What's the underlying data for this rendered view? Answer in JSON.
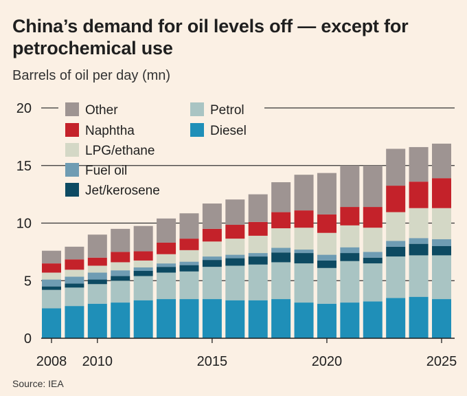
{
  "title": "China’s demand for oil levels off — except for petrochemical use",
  "subtitle": "Barrels of oil per day (mn)",
  "source": "Source: IEA",
  "colors": {
    "background": "#fbf0e4",
    "Diesel": "#1f8fb8",
    "Petrol": "#a9c4c3",
    "Jet/kerosene": "#0d4a62",
    "Fuel oil": "#6f9cb3",
    "LPG/ethane": "#d4d8c6",
    "Naphtha": "#c4222a",
    "Other": "#9e9492"
  },
  "chart_data": {
    "type": "bar",
    "stacked": true,
    "title": "China’s demand for oil levels off — except for petrochemical use",
    "ylabel": "Barrels of oil per day (mn)",
    "ylim": [
      0,
      20
    ],
    "yticks": [
      0,
      5,
      10,
      15,
      20
    ],
    "xticks": [
      "2008",
      "2010",
      "2015",
      "2020",
      "2025"
    ],
    "categories": [
      "2008",
      "2009",
      "2010",
      "2011",
      "2012",
      "2013",
      "2014",
      "2015",
      "2016",
      "2017",
      "2018",
      "2019",
      "2020",
      "2021",
      "2022",
      "2023",
      "2024",
      "2025"
    ],
    "legend_placement": "top-left",
    "legend": [
      "Other",
      "Naphtha",
      "LPG/ethane",
      "Fuel oil",
      "Jet/kerosene",
      "Petrol",
      "Diesel"
    ],
    "series": [
      {
        "name": "Diesel",
        "values": [
          2.6,
          2.8,
          3.0,
          3.1,
          3.3,
          3.4,
          3.4,
          3.4,
          3.3,
          3.3,
          3.4,
          3.1,
          3.0,
          3.1,
          3.2,
          3.5,
          3.6,
          3.4
        ]
      },
      {
        "name": "Petrol",
        "values": [
          1.6,
          1.6,
          1.7,
          1.9,
          2.1,
          2.3,
          2.4,
          2.8,
          3.0,
          3.1,
          3.2,
          3.4,
          3.1,
          3.6,
          3.3,
          3.6,
          3.6,
          3.8
        ]
      },
      {
        "name": "Jet/kerosene",
        "values": [
          0.3,
          0.35,
          0.4,
          0.4,
          0.45,
          0.5,
          0.55,
          0.6,
          0.65,
          0.7,
          0.85,
          0.9,
          0.65,
          0.7,
          0.5,
          0.85,
          1.0,
          0.8
        ]
      },
      {
        "name": "Fuel oil",
        "values": [
          0.6,
          0.6,
          0.6,
          0.5,
          0.3,
          0.3,
          0.3,
          0.3,
          0.3,
          0.3,
          0.4,
          0.3,
          0.5,
          0.5,
          0.5,
          0.5,
          0.5,
          0.6
        ]
      },
      {
        "name": "LPG/ethane",
        "values": [
          0.6,
          0.6,
          0.6,
          0.7,
          0.6,
          0.8,
          1.0,
          1.3,
          1.4,
          1.5,
          1.7,
          1.9,
          1.9,
          1.9,
          2.1,
          2.5,
          2.6,
          2.7
        ]
      },
      {
        "name": "Naphtha",
        "values": [
          0.8,
          0.9,
          0.7,
          0.9,
          0.8,
          1.0,
          1.0,
          1.1,
          1.2,
          1.2,
          1.4,
          1.5,
          1.6,
          1.6,
          1.8,
          2.3,
          2.3,
          2.6
        ]
      },
      {
        "name": "Other",
        "values": [
          1.1,
          1.1,
          2.0,
          2.0,
          2.2,
          2.1,
          2.2,
          2.2,
          2.2,
          2.4,
          2.6,
          3.1,
          3.6,
          3.6,
          3.6,
          3.2,
          3.0,
          3.0
        ]
      }
    ]
  }
}
